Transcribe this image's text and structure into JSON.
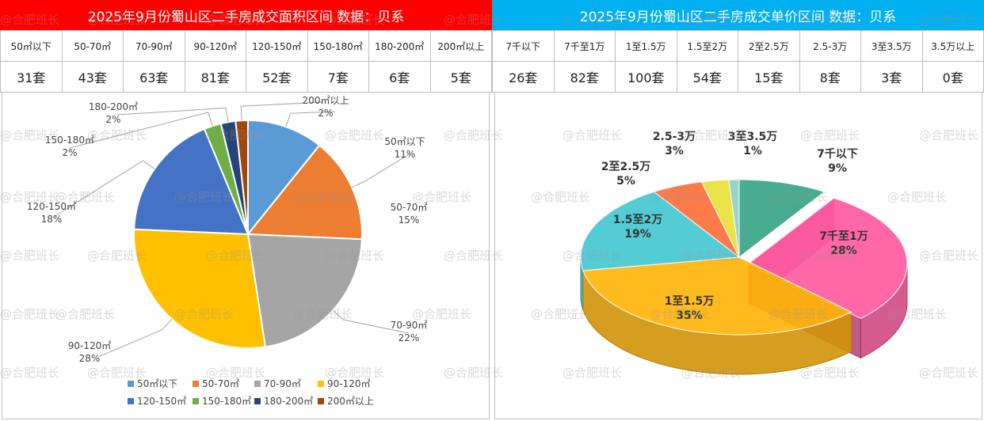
{
  "left": {
    "title": "2025年9月份蜀山区二手房成交面积区间 数据：贝系",
    "chart_data": {
      "type": "pie",
      "categories": [
        "50㎡以下",
        "50-70㎡",
        "70-90㎡",
        "90-120㎡",
        "120-150㎡",
        "150-180㎡",
        "180-200㎡",
        "200㎡以上"
      ],
      "values": [
        31,
        43,
        63,
        81,
        52,
        7,
        6,
        5
      ],
      "units": "套",
      "percent_labels": [
        "11%",
        "15%",
        "22%",
        "28%",
        "18%",
        "2%",
        "2%",
        "2%"
      ],
      "colors": [
        "#5b9bd5",
        "#ed7d31",
        "#a5a5a5",
        "#ffc000",
        "#4472c4",
        "#70ad47",
        "#264478",
        "#9e480e"
      ],
      "legend": "bottom"
    }
  },
  "right": {
    "title": "2025年9月份蜀山区二手房成交单价区间 数据：贝系",
    "chart_data": {
      "type": "pie",
      "categories": [
        "7千以下",
        "7千至1万",
        "1至1.5万",
        "1.5至2万",
        "2至2.5万",
        "2.5-3万",
        "3至3.5万",
        "3.5万以上"
      ],
      "values": [
        26,
        82,
        100,
        54,
        15,
        8,
        3,
        0
      ],
      "units": "套",
      "percent_labels": [
        "9%",
        "28%",
        "35%",
        "19%",
        "5%",
        "3%",
        "1%",
        "0%"
      ],
      "colors": [
        "#3aa587",
        "#ff5aa0",
        "#ffb40a",
        "#45c8d2",
        "#ff6f3c",
        "#e8e23a",
        "#8fd1c4",
        "#999999"
      ],
      "legend": "none"
    }
  },
  "watermark": "@合肥班长"
}
